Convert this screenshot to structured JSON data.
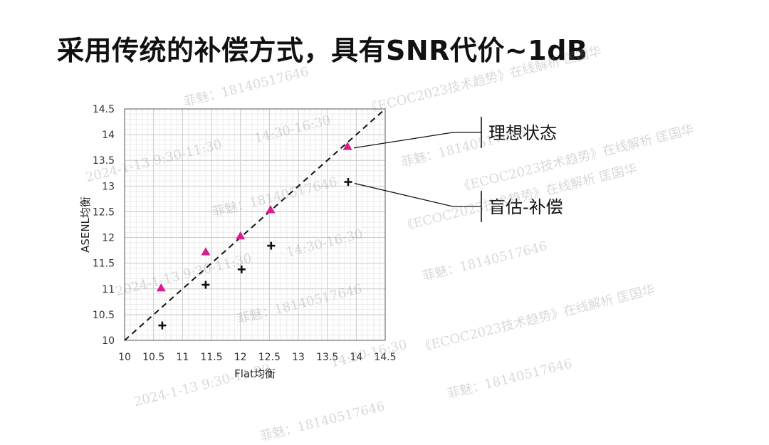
{
  "slide": {
    "title": "采用传统的补偿方式，具有SNR代价~1dB"
  },
  "chart_data": {
    "type": "scatter",
    "xlabel": "Flat均衡",
    "ylabel": "ASENL均衡",
    "xlim": [
      10,
      14.5
    ],
    "ylim": [
      10,
      14.5
    ],
    "xticks": [
      "10",
      "10.5",
      "11",
      "11.5",
      "12",
      "12.5",
      "13",
      "13.5",
      "14",
      "14.5"
    ],
    "yticks": [
      "10",
      "10.5",
      "11",
      "11.5",
      "12",
      "12.5",
      "13",
      "13.5",
      "14",
      "14.5"
    ],
    "grid": true,
    "reference_line": {
      "style": "dashed",
      "from": [
        10,
        10
      ],
      "to": [
        14.5,
        14.5
      ]
    },
    "series": [
      {
        "name": "理想状态",
        "marker": "triangle",
        "color": "#D61F8E",
        "x": [
          10.63,
          11.4,
          12.0,
          12.52,
          13.85
        ],
        "y": [
          11.02,
          11.72,
          12.03,
          12.54,
          13.77
        ]
      },
      {
        "name": "盲估-补偿",
        "marker": "plus",
        "color": "#111111",
        "x": [
          10.65,
          11.4,
          12.02,
          12.53,
          13.86
        ],
        "y": [
          10.29,
          11.08,
          11.38,
          11.84,
          13.08
        ]
      }
    ],
    "callouts": [
      {
        "series": "理想状态",
        "label": "理想状态"
      },
      {
        "series": "盲估-补偿",
        "label": "盲估-补偿"
      }
    ]
  },
  "watermarks": [
    "菲魅：18140517646",
    "《ECOC2023技术趋势》在线解析 匡国华",
    "2024-1-13  9:30-11:30",
    "14:30-16:30"
  ]
}
